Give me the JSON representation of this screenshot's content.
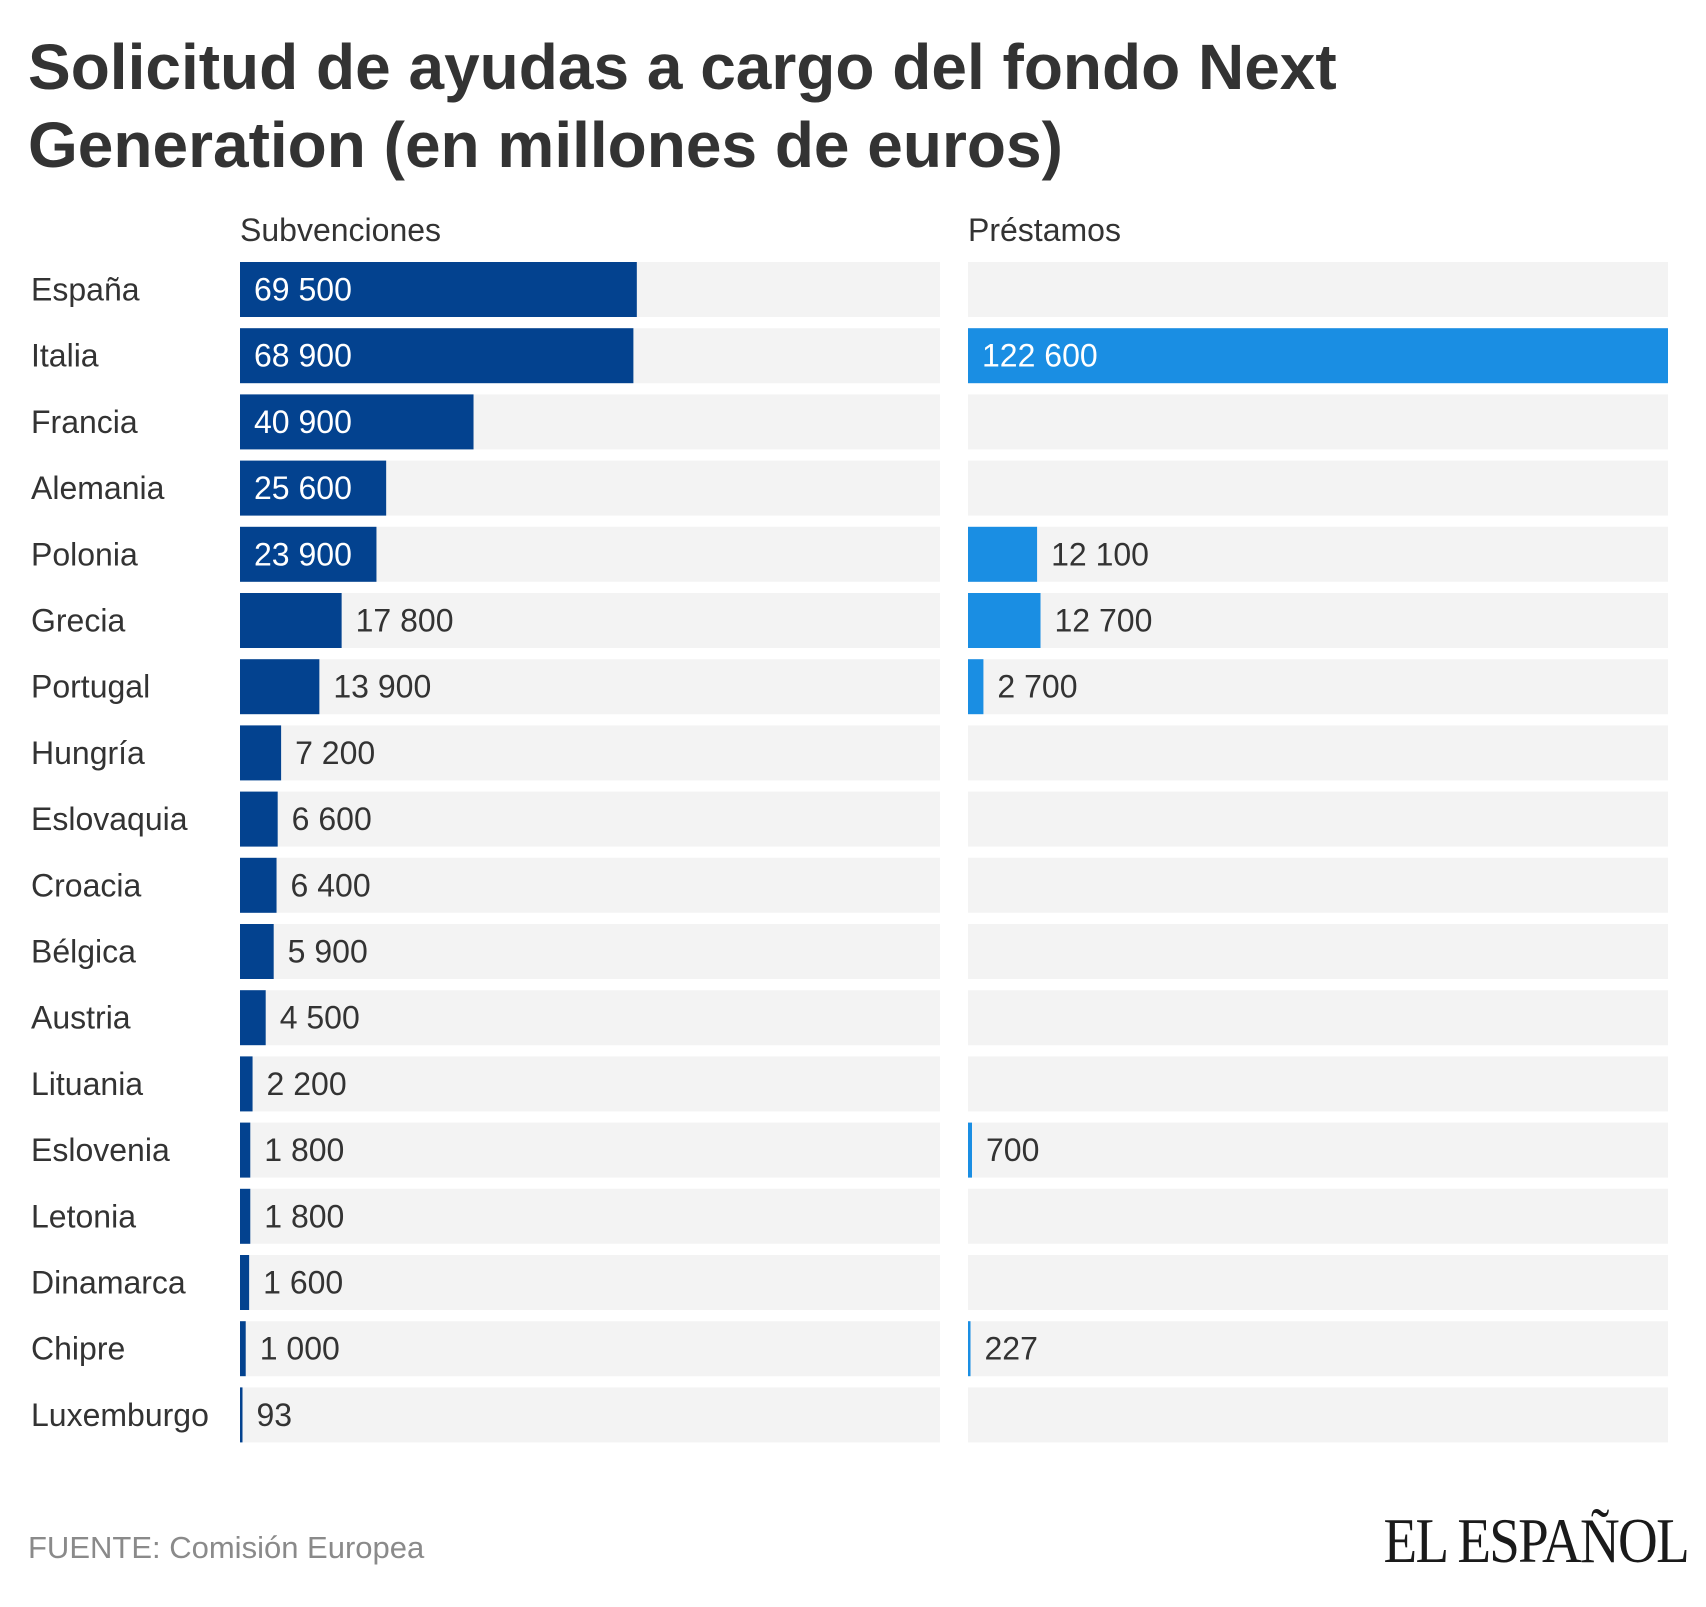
{
  "title": "Solicitud de ayudas a cargo del fondo Next Generation (en millones de euros)",
  "source": "FUENTE: Comisión Europea",
  "brand": "EL ESPAÑOL",
  "colors": {
    "subvenciones": "#03428f",
    "prestamos": "#1a8ee3",
    "track": "#f3f3f3",
    "text": "#333333",
    "source": "#8a8a8a"
  },
  "chart_data": {
    "type": "bar",
    "orientation": "horizontal",
    "title": "Solicitud de ayudas a cargo del fondo Next Generation (en millones de euros)",
    "xlabel": "",
    "ylabel": "",
    "grid": false,
    "legend": "none",
    "categories": [
      "España",
      "Italia",
      "Francia",
      "Alemania",
      "Polonia",
      "Grecia",
      "Portugal",
      "Hungría",
      "Eslovaquia",
      "Croacia",
      "Bélgica",
      "Austria",
      "Lituania",
      "Eslovenia",
      "Letonia",
      "Dinamarca",
      "Chipre",
      "Luxemburgo"
    ],
    "series": [
      {
        "name": "Subvenciones",
        "values": [
          69500,
          68900,
          40900,
          25600,
          23900,
          17800,
          13900,
          7200,
          6600,
          6400,
          5900,
          4500,
          2200,
          1800,
          1800,
          1600,
          1000,
          93
        ],
        "labels": [
          "69 500",
          "68 900",
          "40 900",
          "25 600",
          "23 900",
          "17 800",
          "13 900",
          "7 200",
          "6 600",
          "6 400",
          "5 900",
          "4 500",
          "2 200",
          "1 800",
          "1 800",
          "1 600",
          "1 000",
          "93"
        ],
        "xlim": [
          0,
          122600
        ]
      },
      {
        "name": "Préstamos",
        "values": [
          null,
          122600,
          null,
          null,
          12100,
          12700,
          2700,
          null,
          null,
          null,
          null,
          null,
          null,
          700,
          null,
          null,
          227,
          null
        ],
        "labels": [
          null,
          "122 600",
          null,
          null,
          "12 100",
          "12 700",
          "2 700",
          null,
          null,
          null,
          null,
          null,
          null,
          "700",
          null,
          null,
          "227",
          null
        ],
        "xlim": [
          0,
          122600
        ]
      }
    ]
  }
}
